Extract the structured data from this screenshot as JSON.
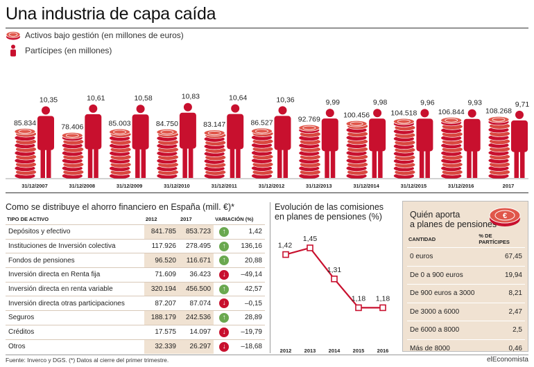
{
  "title": "Una industria de capa caída",
  "legend": {
    "coins": "Activos bajo gestión (en millones de euros)",
    "people": "Partícipes (en millones)"
  },
  "colors": {
    "accent": "#c8102e",
    "red": "#c8102e",
    "green": "#6aa84f",
    "shade": "#f0e2d2",
    "person": "#c8102e"
  },
  "chart_data": [
    {
      "type": "bar",
      "title": "Una industria de capa caída",
      "categories": [
        "31/12/2007",
        "31/12/2008",
        "31/12/2009",
        "31/12/2010",
        "31/12/2011",
        "31/12/2012",
        "31/12/2013",
        "31/12/2014",
        "31/12/2015",
        "31/12/2016",
        "2017"
      ],
      "series": [
        {
          "name": "Activos bajo gestión (en millones de euros)",
          "values": [
            85834,
            78406,
            85003,
            84750,
            83147,
            86527,
            92769,
            100456,
            104518,
            106844,
            108268
          ],
          "labels": [
            "85.834",
            "78.406",
            "85.003",
            "84.750",
            "83.147",
            "86.527",
            "92.769",
            "100.456",
            "104.518",
            "106.844",
            "108.268"
          ]
        },
        {
          "name": "Partícipes (en millones)",
          "values": [
            10.35,
            10.61,
            10.58,
            10.83,
            10.64,
            10.36,
            9.99,
            9.98,
            9.96,
            9.93,
            9.71
          ],
          "labels": [
            "10,35",
            "10,61",
            "10,58",
            "10,83",
            "10,64",
            "10,36",
            "9,99",
            "9,98",
            "9,96",
            "9,93",
            "9,71"
          ]
        }
      ]
    },
    {
      "type": "line",
      "title": "Evolución de las comisiones en planes de pensiones (%)",
      "title_lines": [
        "Evolución de las comisiones",
        "en planes de pensiones (%)"
      ],
      "x": [
        "2012",
        "2013",
        "2014",
        "2015",
        "2016"
      ],
      "series": [
        {
          "values": [
            1.42,
            1.45,
            1.31,
            1.18,
            1.18
          ],
          "labels": [
            "1,42",
            "1,45",
            "1,31",
            "1,18",
            "1,18"
          ]
        }
      ],
      "ylim": [
        1.0,
        1.5
      ]
    },
    {
      "type": "table",
      "title": "Como se distribuye el ahorro financiero en España (mill. €)*",
      "columns": [
        "TIPO DE ACTIVO",
        "2012",
        "2017",
        "VARIACIÓN (%)"
      ],
      "rows": [
        {
          "label": "Depósitos y efectivo",
          "v2012": "841.785",
          "v2017": "853.723",
          "dir": "up",
          "var": "1,42"
        },
        {
          "label": "Instituciones de Inversión colectiva",
          "v2012": "117.926",
          "v2017": "278.495",
          "dir": "up",
          "var": "136,16"
        },
        {
          "label": "Fondos de pensiones",
          "v2012": "96.520",
          "v2017": "116.671",
          "dir": "up",
          "var": "20,88"
        },
        {
          "label": "Inversión directa en Renta fija",
          "v2012": "71.609",
          "v2017": "36.423",
          "dir": "down",
          "var": "–49,14"
        },
        {
          "label": "Inversión directa en renta variable",
          "v2012": "320.194",
          "v2017": "456.500",
          "dir": "up",
          "var": "42,57"
        },
        {
          "label": "Inversión directa otras participaciones",
          "v2012": "87.207",
          "v2017": "87.074",
          "dir": "down",
          "var": "–0,15"
        },
        {
          "label": "Seguros",
          "v2012": "188.179",
          "v2017": "242.536",
          "dir": "up",
          "var": "28,89"
        },
        {
          "label": "Créditos",
          "v2012": "17.575",
          "v2017": "14.097",
          "dir": "down",
          "var": "–19,79"
        },
        {
          "label": "Otros",
          "v2012": "32.339",
          "v2017": "26.297",
          "dir": "down",
          "var": "–18,68"
        }
      ]
    },
    {
      "type": "table",
      "title": "Quién aporta a planes de pensiones",
      "title_lines": [
        "Quién aporta",
        "a planes de pensiones"
      ],
      "columns": [
        "CANTIDAD",
        "% DE PARTÍCIPES"
      ],
      "rows": [
        {
          "label": "0 euros",
          "value": "67,45"
        },
        {
          "label": "De 0 a 900 euros",
          "value": "19,94"
        },
        {
          "label": "De 900 euros a 3000",
          "value": "8,21"
        },
        {
          "label": "De 3000 a 6000",
          "value": "2,47"
        },
        {
          "label": "De 6000 a 8000",
          "value": "2,5"
        },
        {
          "label": "Más de 8000",
          "value": "0,46"
        }
      ]
    }
  ],
  "footer": "Fuente: Inverco y DGS. (*) Datos al cierre del primer trimestre.",
  "brand": "elEconomista"
}
